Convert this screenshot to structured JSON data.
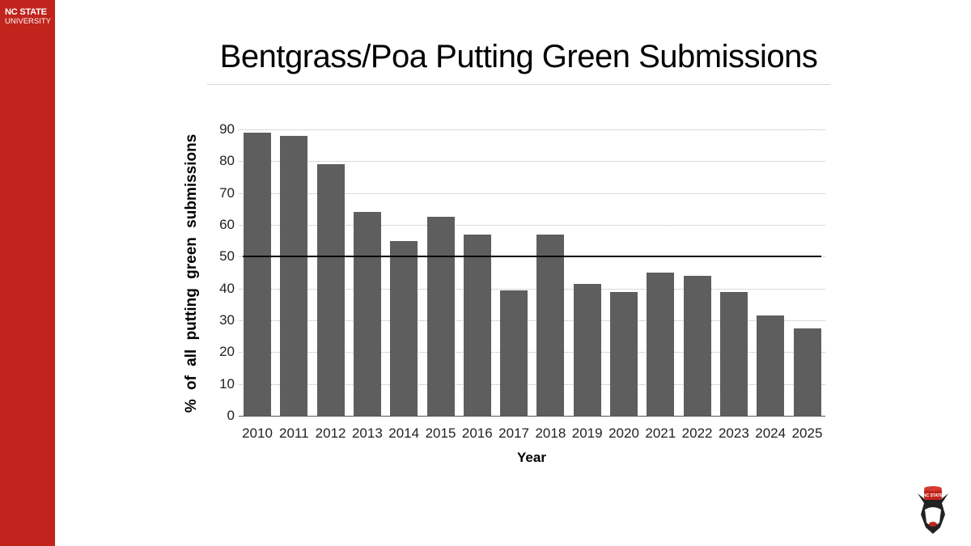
{
  "brand": {
    "line1": "NC STATE",
    "line2": "UNIVERSITY",
    "color": "#c0241c"
  },
  "chart_data": {
    "type": "bar",
    "title": "Bentgrass/Poa Putting Green Submissions",
    "xlabel": "Year",
    "ylabel": "% of all putting green submissions",
    "categories": [
      "2010",
      "2011",
      "2012",
      "2013",
      "2014",
      "2015",
      "2016",
      "2017",
      "2018",
      "2019",
      "2020",
      "2021",
      "2022",
      "2023",
      "2024",
      "2025"
    ],
    "values": [
      89,
      88,
      79,
      64,
      55,
      62.5,
      57,
      39.5,
      57,
      41.5,
      39,
      45,
      44,
      39,
      31.5,
      27.5
    ],
    "ylim": [
      0,
      90
    ],
    "yticks": [
      0,
      10,
      20,
      30,
      40,
      50,
      60,
      70,
      80,
      90
    ],
    "reference_line": 50,
    "grid": true,
    "legend": null,
    "bar_color": "#5e5e5e"
  }
}
